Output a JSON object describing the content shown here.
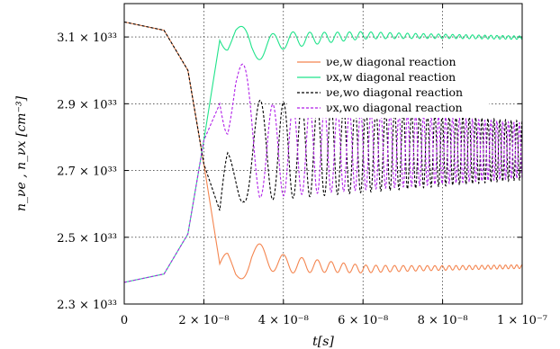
{
  "chart_data": {
    "type": "line",
    "xlabel": "t[s]",
    "ylabel": "n_νe , n_νx [cm⁻³]",
    "xlim": [
      0,
      1e-07
    ],
    "ylim": [
      2.3e+33,
      3.2e+33
    ],
    "x_ticks": [
      {
        "value": 0,
        "label": "0"
      },
      {
        "value": 2e-08,
        "label": "2 × 10⁻⁸"
      },
      {
        "value": 4e-08,
        "label": "4 × 10⁻⁸"
      },
      {
        "value": 6e-08,
        "label": "6 × 10⁻⁸"
      },
      {
        "value": 8e-08,
        "label": "8 × 10⁻⁸"
      },
      {
        "value": 1e-07,
        "label": "1 × 10⁻⁷"
      }
    ],
    "y_ticks": [
      {
        "value": 2.3e+33,
        "label": "2.3 × 10³³"
      },
      {
        "value": 2.5e+33,
        "label": "2.5 × 10³³"
      },
      {
        "value": 2.7e+33,
        "label": "2.7 × 10³³"
      },
      {
        "value": 2.9e+33,
        "label": "2.9 × 10³³"
      },
      {
        "value": 3.1e+33,
        "label": "3.1 × 10³³"
      }
    ],
    "grid": true,
    "legend_position": "top-right",
    "series": [
      {
        "name": "νe,w diagonal reaction",
        "color": "#f4854f",
        "dash": "solid",
        "x": [
          0,
          1e-08,
          1.6e-08,
          2e-08,
          2.4e-08,
          2.8e-08,
          3.2e-08,
          4e-08,
          6e-08,
          8e-08,
          1e-07
        ],
        "y": [
          3.145e+33,
          3.12e+33,
          3e+33,
          2.72e+33,
          2.42e+33,
          2.4e+33,
          2.45e+33,
          2.42e+33,
          2.405e+33,
          2.408e+33,
          2.412e+33
        ],
        "oscillation_min": 2.36e+33,
        "oscillation_max": 2.52e+33
      },
      {
        "name": "νx,w diagonal reaction",
        "color": "#1fe38a",
        "dash": "solid",
        "x": [
          0,
          1e-08,
          1.6e-08,
          2e-08,
          2.4e-08,
          2.8e-08,
          3.2e-08,
          4e-08,
          6e-08,
          8e-08,
          1e-07
        ],
        "y": [
          2.365e+33,
          2.39e+33,
          2.51e+33,
          2.79e+33,
          3.09e+33,
          3.11e+33,
          3.06e+33,
          3.09e+33,
          3.105e+33,
          3.102e+33,
          3.098e+33
        ],
        "oscillation_min": 3e+33,
        "oscillation_max": 3.15e+33
      },
      {
        "name": "νe,wo diagonal reaction",
        "color": "#000000",
        "dash": "dashed",
        "x": [
          0,
          1e-08,
          1.6e-08,
          2e-08,
          2.4e-08,
          3e-08,
          4e-08,
          6e-08,
          8e-08,
          1e-07
        ],
        "y": [
          3.145e+33,
          3.12e+33,
          3e+33,
          2.72e+33,
          2.58e+33,
          2.76e+33,
          2.76e+33,
          2.76e+33,
          2.76e+33,
          2.76e+33
        ],
        "oscillation_min": 2.58e+33,
        "oscillation_max": 2.9e+33
      },
      {
        "name": "νx,wo diagonal reaction",
        "color": "#b01fe8",
        "dash": "dashed",
        "x": [
          0,
          1e-08,
          1.6e-08,
          2e-08,
          2.4e-08,
          2.8e-08,
          3.4e-08,
          4e-08,
          6e-08,
          8e-08,
          1e-07
        ],
        "y": [
          2.365e+33,
          2.39e+33,
          2.51e+33,
          2.79e+33,
          2.9e+33,
          2.93e+33,
          2.76e+33,
          2.76e+33,
          2.76e+33,
          2.76e+33,
          2.76e+33
        ],
        "oscillation_min": 2.63e+33,
        "oscillation_max": 2.93e+33
      }
    ]
  }
}
